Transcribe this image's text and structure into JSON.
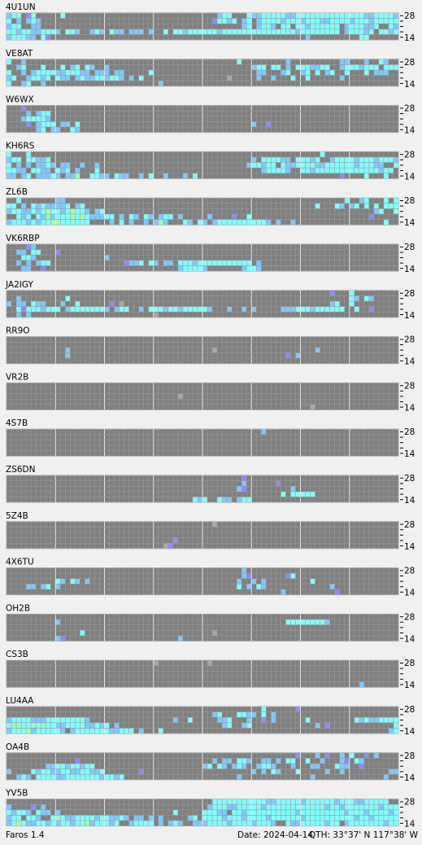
{
  "scale_top": "28",
  "scale_bottom": "14",
  "footer": {
    "app": "Faros 1.4",
    "date": "Date: 2024-04-14",
    "qth": "QTH: 33°37' N  117°38' W"
  },
  "panels": [
    {
      "label": "4U1UN",
      "rows": [
        "lcc.bc.....c...............................lcc...cllcccccllccccccccccccccllcccclc",
        "c.l.lcl...................................bcclc.lc.lcccclccclcccllcccclccclcccccc",
        "lcc..ll.........................................lc.lccl.cc.cclcccccc.lcccllc..clcl",
        "cclccllcccl.ccl..lcl.cll.lll.l..c.cclcccccclccccccccccccccclcccccccc.lccclc.cclccl",
        "lcccll.cb....................................................l..........cc....."
      ]
    },
    {
      "label": "VE8AT",
      "rows": [
        "c..l...........................................c.........l..........ll...l..cl..",
        "..lc...c...c.lc.cl..l.............................lcc.cc.l.cccllcc..lccclccc.cccl",
        "c..l.lccccllcccll.lll.ll.....c.....................ll...lc..lc.c.lc..c...c.lll..",
        "lc..lcclc.cll.lcllcclccl.l.c.................d.....l..l...c..c......l...........l",
        "c..lc..l.......................l................................................"
      ]
    },
    {
      "label": "W6WX",
      "rows": [
        "...b............................................................................",
        "....l.lcc.........................................................................",
        "...lccccl.........................................................................",
        "....b.lccc.ll.c...................................l..b..........................",
        "......lc.ll..cl..................................................................."
      ]
    },
    {
      "label": "KH6RS",
      "rows": [
        "c...c...........................................................c...............",
        "lcc.ccllc.........................................l.ccccll.ccclc..lcccclccclcccll",
        "c.l.l.llcl.ll..l..l..............................lcclcc.cllccccllcccccclcccll..cc",
        "ccll.ccll.clc.l...c.................................lccccl..cclccccccccccccclcc.l",
        "ll.lc.lllcl.llg..ccll.cll..l.c..l...l.c.............................b....c...c..."
      ]
    },
    {
      "label": "ZL6B",
      "rows": [
        "..c.......ll.........................................................c..lc...c.cl",
        "cc.l.clcllllc.lc...............................................c...cl.lc.c.c.cccl",
        "lccllclcgcclcgccl.lc.......................................................lc..cl",
        "..clc.clglcccgcgclllcc.l.cl.cl.lcc.l.....l....b..c........................b.....",
        "lccclclccggcccccc....l.c.l..l.lgl...cl.cl.lccccccccccl.l..l..................c..."
      ]
    },
    {
      "label": "VK6RBP",
      "rows": [
        "....bl...........................................................................",
        "..ll.cc...b......................................................................",
        "...ccl..............l..........................................................",
        "..l.l.lcc...............bllc.cl.ll.ccclccccccccccc.l..............................",
        "...ll..b...........................lccccl.......lccl..............................."
      ]
    },
    {
      "label": "JA2IGY",
      "rows": [
        "..................................................................b...c.........",
        "..l.........c.........................................................cl.cl.....",
        "l.ll.cll...l..c......b.d..........................................lc..c..........",
        "..cbccclccc.lcccccccl.lcc..l.ccclcclcccccl...l..l.l.....lllccclcccccc..c..b.....",
        "..l.l.........................d.................................................."
      ]
    },
    {
      "label": "RR9O",
      "rows": [
        "................................................................................",
        "................................................................................",
        "............l.............................d....................l................",
        "............l............................................b.l......................",
        "................................................................................"
      ]
    },
    {
      "label": "VR2B",
      "rows": [
        "................................................................................",
        "................................................................................",
        "...................................d............................................",
        "................................................................................",
        "..............................................................d................."
      ]
    },
    {
      "label": "4S7B",
      "rows": [
        "....................................................l...........................",
        "................................................................................",
        "................................................................................",
        "................................................................................",
        "................................................................................"
      ]
    },
    {
      "label": "ZS6DN",
      "rows": [
        "................................................b.................................",
        "................................................l......b.........................",
        "...............................................lb.........l.......................",
        "........................................................c.ccccc.....................",
        "......................................clc..cll.lcc..................................."
      ]
    },
    {
      "label": "5Z4B",
      "rows": [
        "..........................................d.....................................",
        "................................................................................",
        "................................................................................",
        "..................................b.............................................",
        "................................db................................................"
      ]
    },
    {
      "label": "4X6TU",
      "rows": [
        "................................................l...............................",
        "................................................lb.......bc.......................",
        "..........cl.cl.l..............................l..l.l.........c..................",
        "....ll.lc.l....................................c.l.cl.............l..............",
        "........................................................l..........b............."
      ]
    },
    {
      "label": "OH2B",
      "rows": [
        "................................................................................",
        "..........l..............................................ccccccccl.................",
        "................................................................................",
        "...............c..........................d.......................................",
        "..........lb.......................l............................................"
      ]
    },
    {
      "label": "CS3B",
      "rows": [
        "..............................d..........d........................................",
        "................................................................................",
        "................................................................................",
        "................................................................................",
        "........................................................................l........"
      ]
    },
    {
      "label": "LU4AA",
      "rows": [
        "....................................................c......b.....................",
        "..........................................lc...ccll.c.l.........................c",
        "lcccclllccccccccl.................l..c.....llc...l..b.l......c.........clcllccccc",
        "cggccgcgccllccccllclc.l.....................lc..lc.............l.b.............c.l",
        "lcccglcccccl.lcccccccllccc.l...c..............................................lccc"
      ]
    },
    {
      "label": "OA4B",
      "rows": [
        "...........................................................b...l.b..l.c..b.l...",
        "..............b...........................l.ll.ccl..ll.l.cc..c..l...lb.cl......",
        "........llcclcclcc......................lc.cl.lcl..lccl...l...ll...cll..b.......",
        "l....clccllccllccllc.......b......................l.l.cl...c.....l..l.........ll",
        "..lcl.ccccllccccccclcclc.......................l..............l..............l..l"
      ]
    },
    {
      "label": "YV5B",
      "rows": [
        "..........................................cccccccccccllccccclcccccclcccllccccc..c",
        "l....b.l.................................lcccllccccclcccccccccccclcclccccccclcccl",
        "clccl.cll.l.......................c.....cccll.cclcccccccccclccccccccclccclcccclcl",
        "lcc.ccl..cgcllcccclccllcl.ll.l.l.....lc.cccclccclcccclcccccclcccccccccclcclcccccl",
        "lcgcllcclclcclccglccclc..lcccc.l.lcl..lllcccclcccclcccl..cllccccclcc.lccccccclcc"
      ]
    }
  ]
}
